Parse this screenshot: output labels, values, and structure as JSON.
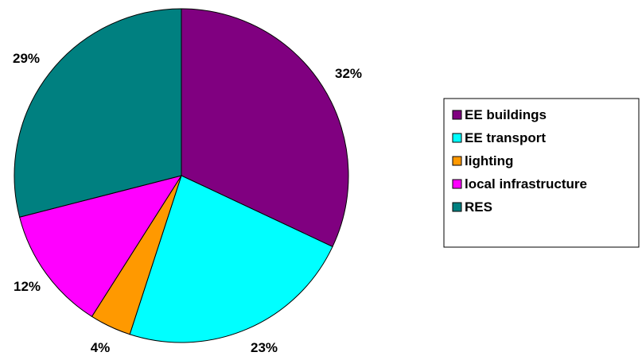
{
  "chart_data": {
    "type": "pie",
    "categories": [
      "EE buildings",
      "EE transport",
      "lighting",
      "local infrastructure",
      "RES"
    ],
    "values": [
      32,
      23,
      4,
      12,
      29
    ],
    "labels": [
      "32%",
      "23%",
      "4%",
      "12%",
      "29%"
    ],
    "colors": [
      "#800080",
      "#00FFFF",
      "#FF9900",
      "#FF00FF",
      "#008080"
    ],
    "legend_position": "right",
    "start_angle": "12 o'clock",
    "direction": "clockwise"
  }
}
